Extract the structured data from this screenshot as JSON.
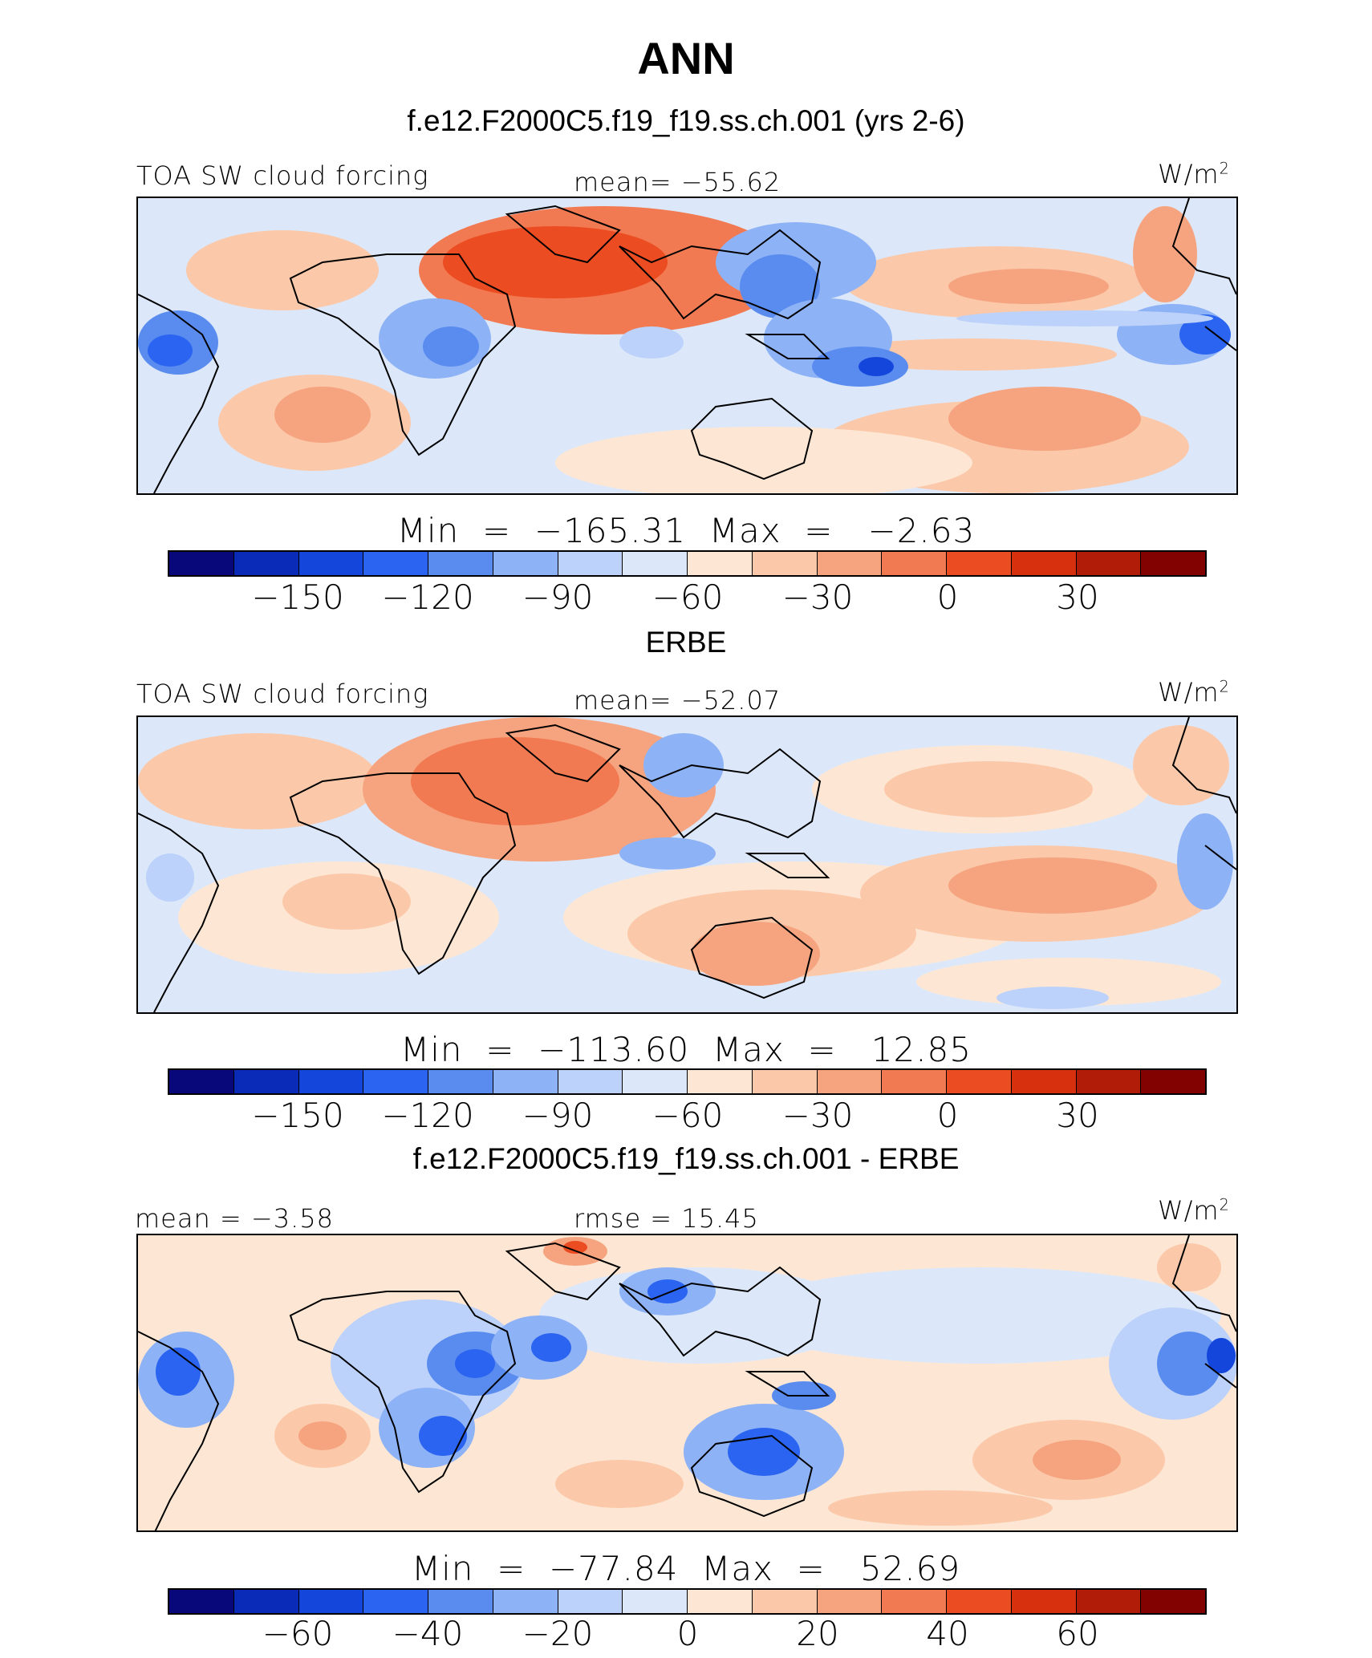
{
  "page": {
    "title": "ANN",
    "subtitle": "f.e12.F2000C5.f19_f19.ss.ch.001 (yrs 2-6)"
  },
  "colors": {
    "scale": [
      "#08087a",
      "#0a2ab8",
      "#1446dc",
      "#2a64f0",
      "#5a8cf0",
      "#8eb2f6",
      "#bcd2fa",
      "#dce8fa",
      "#fde7d4",
      "#fbc9aa",
      "#f6a480",
      "#f27a52",
      "#ec4c22",
      "#d6300e",
      "#b01c08",
      "#820202"
    ],
    "land": "#000000"
  },
  "panels": [
    {
      "section_title": "",
      "left_label": "TOA SW cloud forcing",
      "center_label": "mean=  −55.62",
      "units": "W/m",
      "units_exp": "2",
      "minmax": "Min  =  −165.31  Max  =   −2.63",
      "ticks": [
        "−150",
        "−120",
        "−90",
        "−60",
        "−30",
        "0",
        "30"
      ]
    },
    {
      "section_title": "ERBE",
      "left_label": "TOA SW cloud forcing",
      "center_label": "mean=  −52.07",
      "units": "W/m",
      "units_exp": "2",
      "minmax": "Min  =  −113.60  Max  =   12.85",
      "ticks": [
        "−150",
        "−120",
        "−90",
        "−60",
        "−30",
        "0",
        "30"
      ]
    },
    {
      "section_title": "f.e12.F2000C5.f19_f19.ss.ch.001 - ERBE",
      "left_label": "mean  =   −3.58",
      "center_label": "rmse  =   15.45",
      "units": "W/m",
      "units_exp": "2",
      "minmax": "Min  =  −77.84  Max  =   52.69",
      "ticks": [
        "−60",
        "−40",
        "−20",
        "0",
        "20",
        "40",
        "60"
      ]
    }
  ]
}
